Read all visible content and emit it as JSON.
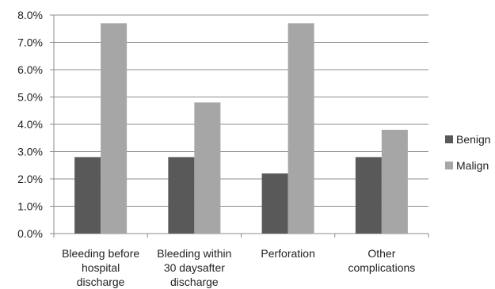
{
  "chart_data": {
    "type": "bar",
    "categories": [
      [
        "Bleeding before",
        "hospital",
        "discharge"
      ],
      [
        "Bleeding within",
        "30 daysafter",
        "discharge"
      ],
      [
        "Perforation"
      ],
      [
        "Other",
        "complications"
      ]
    ],
    "series": [
      {
        "name": "Benign",
        "values": [
          2.8,
          2.8,
          2.2,
          2.8
        ],
        "color": "#595959"
      },
      {
        "name": "Malign",
        "values": [
          7.7,
          4.8,
          7.7,
          3.8
        ],
        "color": "#a6a6a6"
      }
    ],
    "yticks": [
      "0.0%",
      "1.0%",
      "2.0%",
      "3.0%",
      "4.0%",
      "5.0%",
      "6.0%",
      "7.0%",
      "8.0%"
    ],
    "ylim": [
      0,
      8
    ],
    "grid": true,
    "legend_position": "right",
    "title": "",
    "xlabel": "",
    "ylabel": "",
    "gridline_color": "#8c8c8c"
  }
}
